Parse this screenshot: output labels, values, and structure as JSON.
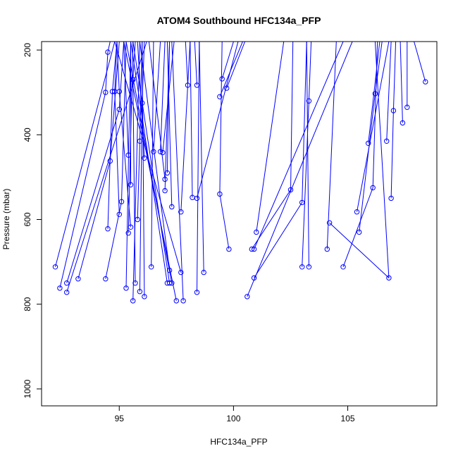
{
  "chart_data": {
    "type": "line",
    "title": "ATOM4 Southbound HFC134a_PFP",
    "xlabel": "HFC134a_PFP",
    "ylabel": "Pressure (mbar)",
    "xlim": [
      91.6,
      108.9
    ],
    "ylim": [
      1040,
      180
    ],
    "y_reversed": true,
    "x_ticks": [
      95,
      100,
      105
    ],
    "y_ticks": [
      200,
      400,
      600,
      800,
      1000
    ],
    "line_color": "#0000ff",
    "marker": "open-circle",
    "grid": false,
    "series": [
      {
        "values": [
          [
            92.2,
            712
          ],
          [
            94.8,
            180
          ]
        ]
      },
      {
        "values": [
          [
            92.4,
            762
          ],
          [
            94.4,
            300
          ],
          [
            94.5,
            205
          ],
          [
            94.6,
            180
          ]
        ]
      },
      {
        "values": [
          [
            92.7,
            750
          ],
          [
            95.0,
            340
          ],
          [
            95.2,
            180
          ]
        ]
      },
      {
        "values": [
          [
            92.7,
            772
          ],
          [
            96.2,
            180
          ]
        ]
      },
      {
        "values": [
          [
            93.2,
            740
          ],
          [
            94.6,
            462
          ],
          [
            95.0,
            180
          ]
        ]
      },
      {
        "values": [
          [
            94.4,
            740
          ],
          [
            95.1,
            558
          ],
          [
            95.3,
            180
          ]
        ]
      },
      {
        "values": [
          [
            94.5,
            622
          ],
          [
            94.7,
            298
          ],
          [
            94.9,
            180
          ]
        ]
      },
      {
        "values": [
          [
            95.0,
            588
          ],
          [
            94.8,
            298
          ],
          [
            94.9,
            180
          ]
        ]
      },
      {
        "values": [
          [
            95.3,
            762
          ],
          [
            95.5,
            180
          ]
        ]
      },
      {
        "values": [
          [
            95.4,
            632
          ],
          [
            95.6,
            180
          ]
        ]
      },
      {
        "values": [
          [
            95.4,
            448
          ],
          [
            95.2,
            180
          ]
        ]
      },
      {
        "values": [
          [
            95.5,
            518
          ],
          [
            95.5,
            180
          ]
        ]
      },
      {
        "values": [
          [
            95.5,
            618
          ],
          [
            95.0,
            298
          ],
          [
            94.9,
            180
          ]
        ]
      },
      {
        "values": [
          [
            95.6,
            792
          ],
          [
            95.9,
            180
          ]
        ]
      },
      {
        "values": [
          [
            95.7,
            750
          ],
          [
            95.6,
            270
          ],
          [
            95.7,
            180
          ]
        ]
      },
      {
        "values": [
          [
            95.8,
            600
          ],
          [
            95.9,
            415
          ],
          [
            96.0,
            180
          ]
        ]
      },
      {
        "values": [
          [
            95.9,
            770
          ],
          [
            96.0,
            325
          ],
          [
            96.1,
            180
          ]
        ]
      },
      {
        "values": [
          [
            96.1,
            782
          ],
          [
            96.0,
            180
          ]
        ]
      },
      {
        "values": [
          [
            96.1,
            455
          ],
          [
            95.8,
            180
          ]
        ]
      },
      {
        "values": [
          [
            96.4,
            712
          ],
          [
            96.5,
            180
          ]
        ]
      },
      {
        "values": [
          [
            96.5,
            440
          ],
          [
            96.8,
            180
          ]
        ]
      },
      {
        "values": [
          [
            96.8,
            440
          ],
          [
            97.0,
            180
          ]
        ]
      },
      {
        "values": [
          [
            96.9,
            442
          ],
          [
            97.4,
            180
          ]
        ]
      },
      {
        "values": [
          [
            97.0,
            532
          ],
          [
            97.2,
            180
          ]
        ]
      },
      {
        "values": [
          [
            97.0,
            505
          ],
          [
            96.3,
            180
          ]
        ]
      },
      {
        "values": [
          [
            97.1,
            490
          ],
          [
            97.2,
            180
          ]
        ]
      },
      {
        "values": [
          [
            97.1,
            750
          ],
          [
            95.5,
            180
          ]
        ]
      },
      {
        "values": [
          [
            97.2,
            720
          ],
          [
            95.9,
            180
          ]
        ]
      },
      {
        "values": [
          [
            97.2,
            750
          ],
          [
            95.6,
            180
          ]
        ]
      },
      {
        "values": [
          [
            97.3,
            750
          ],
          [
            95.3,
            180
          ]
        ]
      },
      {
        "values": [
          [
            97.3,
            570
          ],
          [
            97.1,
            180
          ]
        ]
      },
      {
        "values": [
          [
            97.5,
            792
          ],
          [
            95.2,
            180
          ]
        ]
      },
      {
        "values": [
          [
            97.7,
            582
          ],
          [
            98.1,
            180
          ]
        ]
      },
      {
        "values": [
          [
            97.8,
            792
          ],
          [
            97.3,
            180
          ]
        ]
      },
      {
        "values": [
          [
            97.7,
            725
          ],
          [
            94.8,
            180
          ]
        ]
      },
      {
        "values": [
          [
            98.0,
            283
          ],
          [
            97.9,
            180
          ]
        ]
      },
      {
        "values": [
          [
            98.2,
            548
          ],
          [
            98.1,
            180
          ]
        ]
      },
      {
        "values": [
          [
            98.4,
            283
          ],
          [
            98.3,
            180
          ]
        ]
      },
      {
        "values": [
          [
            98.4,
            550
          ],
          [
            100.2,
            180
          ]
        ]
      },
      {
        "values": [
          [
            98.4,
            772
          ],
          [
            98.5,
            180
          ]
        ]
      },
      {
        "values": [
          [
            98.7,
            725
          ],
          [
            98.5,
            180
          ]
        ]
      },
      {
        "values": [
          [
            99.4,
            310
          ],
          [
            100.4,
            180
          ]
        ]
      },
      {
        "values": [
          [
            99.5,
            268
          ],
          [
            100.0,
            180
          ]
        ]
      },
      {
        "values": [
          [
            99.8,
            670
          ],
          [
            99.4,
            540
          ],
          [
            99.5,
            180
          ]
        ]
      },
      {
        "values": [
          [
            99.7,
            290
          ],
          [
            100.5,
            180
          ]
        ]
      },
      {
        "values": [
          [
            100.6,
            782
          ],
          [
            105.2,
            180
          ]
        ]
      },
      {
        "values": [
          [
            100.8,
            670
          ],
          [
            102.5,
            530
          ],
          [
            102.6,
            180
          ]
        ]
      },
      {
        "values": [
          [
            100.9,
            670
          ],
          [
            104.8,
            180
          ]
        ]
      },
      {
        "values": [
          [
            100.9,
            738
          ],
          [
            103.0,
            560
          ],
          [
            103.2,
            180
          ]
        ]
      },
      {
        "values": [
          [
            101.0,
            630
          ],
          [
            102.2,
            180
          ]
        ]
      },
      {
        "values": [
          [
            103.0,
            712
          ],
          [
            103.3,
            320
          ],
          [
            103.4,
            180
          ]
        ]
      },
      {
        "values": [
          [
            103.3,
            712
          ],
          [
            103.2,
            180
          ]
        ]
      },
      {
        "values": [
          [
            104.1,
            670
          ],
          [
            104.5,
            180
          ]
        ]
      },
      {
        "values": [
          [
            104.2,
            608
          ],
          [
            106.8,
            738
          ],
          [
            106.2,
            180
          ]
        ]
      },
      {
        "values": [
          [
            104.8,
            712
          ],
          [
            106.1,
            525
          ],
          [
            106.3,
            180
          ]
        ]
      },
      {
        "values": [
          [
            105.4,
            582
          ],
          [
            106.8,
            180
          ]
        ]
      },
      {
        "values": [
          [
            105.5,
            630
          ],
          [
            106.2,
            303
          ],
          [
            106.5,
            180
          ]
        ]
      },
      {
        "values": [
          [
            105.9,
            420
          ],
          [
            106.4,
            180
          ]
        ]
      },
      {
        "values": [
          [
            106.7,
            415
          ],
          [
            106.9,
            180
          ]
        ]
      },
      {
        "values": [
          [
            106.9,
            550
          ],
          [
            107.0,
            343
          ],
          [
            107.1,
            180
          ]
        ]
      },
      {
        "values": [
          [
            107.4,
            372
          ],
          [
            107.3,
            180
          ]
        ]
      },
      {
        "values": [
          [
            107.6,
            335
          ],
          [
            107.6,
            180
          ]
        ]
      },
      {
        "values": [
          [
            108.4,
            275
          ],
          [
            107.9,
            180
          ]
        ]
      }
    ]
  }
}
